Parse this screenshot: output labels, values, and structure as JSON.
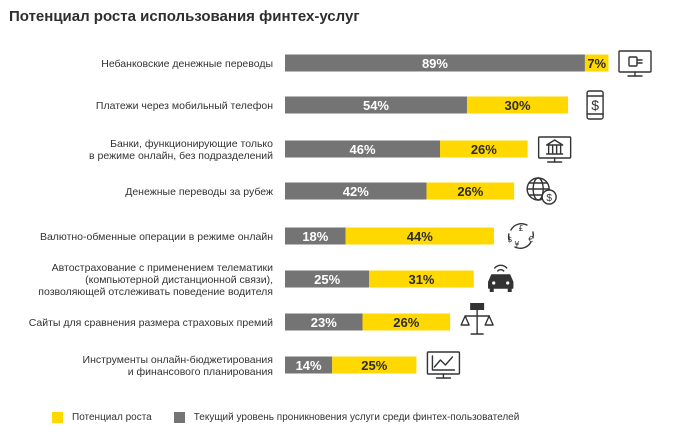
{
  "title": "Потенциал роста использования финтех-услуг",
  "colors": {
    "current": "#747474",
    "potential": "#ffd800",
    "icon": "#333333"
  },
  "legend": {
    "potential": "Потенциал роста",
    "current": "Текущий уровень проникновения услуги среди финтех-пользователей"
  },
  "chart_data": {
    "type": "bar",
    "orientation": "horizontal",
    "stacked": true,
    "categories": [
      [
        "Небанковские  денежные переводы"
      ],
      [
        "Платежи через мобильный телефон"
      ],
      [
        "Банки, функционирующие только",
        "в режиме онлайн, без подразделений"
      ],
      [
        "Денежные переводы за рубеж"
      ],
      [
        "Валютно-обменные операции в режиме онлайн"
      ],
      [
        "Автострахование с применением телематики",
        "(компьютерной дистанционной связи),",
        "позволяющей отслеживать поведение водителя"
      ],
      [
        "Сайты для сравнения размера страховых премий"
      ],
      [
        "Инструменты онлайн-бюджетирования",
        "и финансового планирования"
      ]
    ],
    "series": [
      {
        "name": "Текущий уровень проникновения услуги среди финтех-пользователей",
        "values": [
          89,
          54,
          46,
          42,
          18,
          25,
          23,
          14
        ],
        "labels": [
          "89%",
          "54%",
          "46%",
          "42%",
          "18%",
          "25%",
          "23%",
          "14%"
        ]
      },
      {
        "name": "Потенциал роста",
        "values": [
          7,
          30,
          26,
          26,
          44,
          31,
          26,
          25
        ],
        "labels": [
          "7%",
          "30%",
          "26%",
          "26%",
          "44%",
          "31%",
          "26%",
          "25%"
        ]
      }
    ],
    "icons": [
      "monitor-payment-icon",
      "phone-dollar-icon",
      "bank-monitor-icon",
      "globe-dollar-icon",
      "currency-exchange-icon",
      "car-telematics-icon",
      "scales-compare-icon",
      "chart-monitor-icon"
    ],
    "xlim": [
      0,
      100
    ],
    "grid": false,
    "legend_position": "bottom"
  }
}
